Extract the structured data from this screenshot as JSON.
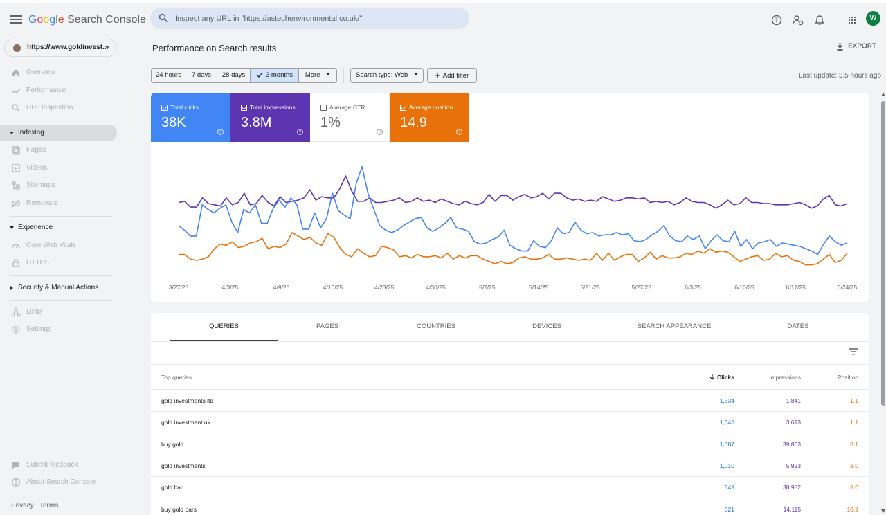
{
  "app": {
    "logo_google": [
      "G",
      "o",
      "o",
      "g",
      "l",
      "e"
    ],
    "logo_product": "Search Console",
    "search_placeholder": "Inspect any URL in \"https://astechenvironmental.co.uk/\"",
    "avatar_initial": "W",
    "property": "https://www.goldinvest...",
    "icons": [
      "menu-icon",
      "search-icon",
      "help-icon",
      "manage-users-icon",
      "notifications-icon",
      "apps-grid-icon"
    ]
  },
  "sidebar": {
    "items": [
      {
        "label": "Overview",
        "icon": "home-icon"
      },
      {
        "label": "Performance",
        "icon": "trending-icon"
      },
      {
        "label": "URL inspection",
        "icon": "search-icon"
      }
    ],
    "indexing": {
      "label": "Indexing",
      "items": [
        {
          "label": "Pages",
          "icon": "pages-icon"
        },
        {
          "label": "Videos",
          "icon": "videos-icon"
        },
        {
          "label": "Sitemaps",
          "icon": "sitemap-icon"
        },
        {
          "label": "Removals",
          "icon": "removals-icon"
        }
      ]
    },
    "experience": {
      "label": "Experience",
      "items": [
        {
          "label": "Core Web Vitals",
          "icon": "speed-icon"
        },
        {
          "label": "HTTPS",
          "icon": "lock-icon"
        }
      ]
    },
    "security": {
      "label": "Security & Manual Actions"
    },
    "links": {
      "label": "Links",
      "icon": "links-icon"
    },
    "settings": {
      "label": "Settings",
      "icon": "gear-icon"
    },
    "feedback": {
      "label": "Submit feedback",
      "icon": "feedback-icon"
    },
    "about": {
      "label": "About Search Console",
      "icon": "info-icon"
    },
    "privacy": "Privacy",
    "terms": "Terms"
  },
  "header": {
    "title": "Performance on Search results",
    "export": "EXPORT",
    "last_update": "Last update: 3.5 hours ago"
  },
  "filters": {
    "ranges": [
      "24 hours",
      "7 days",
      "28 days",
      "3 months"
    ],
    "selected_range": "3 months",
    "more": "More",
    "search_type": "Search type: Web",
    "add_filter": "Add filter"
  },
  "metrics": [
    {
      "label": "Total clicks",
      "value": "38K",
      "checked": true,
      "color": "#4285f4"
    },
    {
      "label": "Total impressions",
      "value": "3.8M",
      "checked": true,
      "color": "#5e35b1"
    },
    {
      "label": "Average CTR",
      "value": "1%",
      "checked": false,
      "color": "#ffffff"
    },
    {
      "label": "Average position",
      "value": "14.9",
      "checked": true,
      "color": "#e8710a"
    }
  ],
  "chart_data": {
    "type": "line",
    "x_labels": [
      "3/27/25",
      "4/3/25",
      "4/9/25",
      "4/16/25",
      "4/23/25",
      "4/30/25",
      "5/7/25",
      "5/14/25",
      "5/21/25",
      "5/27/25",
      "6/3/25",
      "6/10/25",
      "6/17/25",
      "6/24/25"
    ],
    "grid": false,
    "axes_values_hidden": true,
    "series": [
      {
        "name": "Total impressions",
        "color": "#5e35b1",
        "values": [
          62,
          63,
          58,
          58,
          66,
          61,
          60,
          59,
          66,
          60,
          62,
          70,
          60,
          61,
          68,
          62,
          59,
          67,
          62,
          63,
          64,
          66,
          73,
          64,
          67,
          66,
          66,
          74,
          85,
          72,
          63,
          63,
          66,
          62,
          62,
          63,
          64,
          66,
          62,
          63,
          66,
          63,
          64,
          62,
          65,
          63,
          61,
          60,
          63,
          61,
          60,
          62,
          69,
          63,
          68,
          68,
          64,
          67,
          69,
          66,
          67,
          70,
          65,
          70,
          70,
          66,
          64,
          65,
          63,
          64,
          63,
          67,
          65,
          63,
          64,
          66,
          66,
          65,
          66,
          62,
          63,
          62,
          63,
          60,
          62,
          66,
          63,
          62,
          62,
          60,
          57,
          60,
          64,
          60,
          61,
          66,
          62,
          62,
          61,
          61,
          60,
          60,
          60,
          61,
          62,
          60,
          57,
          59,
          65,
          68,
          60,
          59,
          61
        ]
      },
      {
        "name": "Total clicks",
        "color": "#4285f4",
        "values": [
          42,
          38,
          33,
          33,
          60,
          56,
          53,
          57,
          60,
          45,
          36,
          56,
          53,
          60,
          44,
          44,
          57,
          64,
          58,
          66,
          60,
          39,
          39,
          53,
          40,
          48,
          70,
          55,
          51,
          48,
          78,
          93,
          70,
          56,
          42,
          38,
          36,
          38,
          42,
          45,
          48,
          49,
          40,
          37,
          40,
          44,
          49,
          40,
          39,
          37,
          28,
          26,
          27,
          30,
          32,
          38,
          25,
          22,
          20,
          20,
          29,
          24,
          23,
          29,
          40,
          35,
          36,
          45,
          38,
          35,
          36,
          33,
          34,
          34,
          36,
          34,
          35,
          29,
          28,
          30,
          34,
          37,
          42,
          33,
          29,
          28,
          33,
          30,
          33,
          22,
          29,
          34,
          29,
          28,
          37,
          24,
          30,
          22,
          27,
          28,
          30,
          24,
          27,
          26,
          25,
          24,
          22,
          20,
          17,
          26,
          33,
          28,
          25,
          27
        ]
      },
      {
        "name": "Average position",
        "color": "#e8710a",
        "values": [
          17,
          17,
          13,
          12,
          13,
          15,
          22,
          26,
          25,
          28,
          23,
          24,
          27,
          28,
          31,
          22,
          24,
          23,
          26,
          36,
          33,
          30,
          32,
          27,
          25,
          35,
          32,
          23,
          17,
          15,
          22,
          18,
          15,
          16,
          24,
          23,
          21,
          15,
          16,
          14,
          17,
          15,
          15,
          16,
          14,
          18,
          13,
          16,
          14,
          16,
          16,
          13,
          11,
          9,
          11,
          9,
          10,
          14,
          15,
          13,
          13,
          14,
          17,
          13,
          13,
          14,
          13,
          12,
          13,
          12,
          18,
          12,
          18,
          12,
          15,
          17,
          17,
          11,
          14,
          19,
          13,
          16,
          14,
          14,
          15,
          18,
          17,
          20,
          18,
          22,
          19,
          20,
          19,
          15,
          11,
          13,
          15,
          16,
          12,
          13,
          18,
          15,
          16,
          12,
          11,
          8,
          8,
          9,
          13,
          17,
          10,
          12,
          18
        ]
      }
    ]
  },
  "table": {
    "tabs": [
      "QUERIES",
      "PAGES",
      "COUNTRIES",
      "DEVICES",
      "SEARCH APPEARANCE",
      "DATES"
    ],
    "active_tab": "QUERIES",
    "headers": {
      "query": "Top queries",
      "clicks": "Clicks",
      "impressions": "Impressions",
      "position": "Position"
    },
    "rows": [
      {
        "query": "gold investments ltd",
        "clicks": "1,534",
        "impressions": "1,841",
        "position": "1.1"
      },
      {
        "query": "gold investment uk",
        "clicks": "1,348",
        "impressions": "3,613",
        "position": "1.1"
      },
      {
        "query": "buy gold",
        "clicks": "1,087",
        "impressions": "39,803",
        "position": "8.1"
      },
      {
        "query": "gold investments",
        "clicks": "1,010",
        "impressions": "5,923",
        "position": "8.0"
      },
      {
        "query": "gold bar",
        "clicks": "549",
        "impressions": "38,982",
        "position": "8.0"
      },
      {
        "query": "buy gold bars",
        "clicks": "521",
        "impressions": "14,115",
        "position": "10.9"
      }
    ]
  }
}
